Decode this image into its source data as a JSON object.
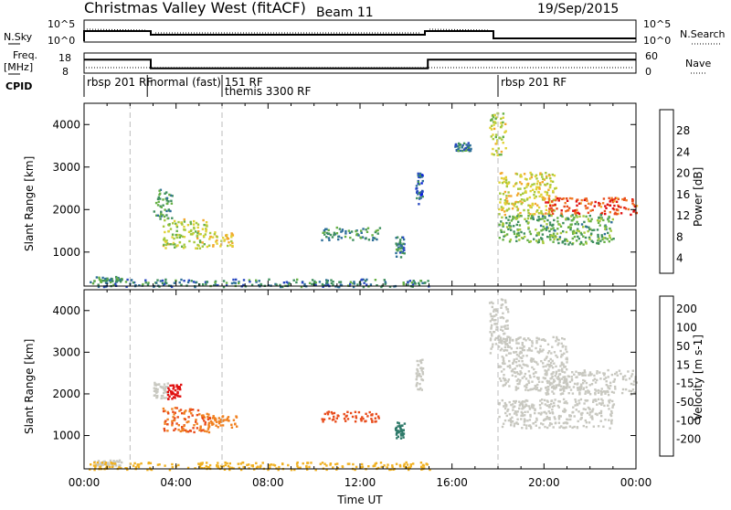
{
  "header": {
    "title": "Christmas Valley West (fitACF)",
    "beam": "Beam 11",
    "date": "19/Sep/2015"
  },
  "params": {
    "nsky_label": "N.Sky",
    "nsky_ticks": [
      "10^5",
      "10^0"
    ],
    "nsearch_label": "N.Search",
    "nsearch_ticks": [
      "10^5",
      "10^0"
    ],
    "freq_label": [
      "Freq.",
      "[MHz]"
    ],
    "freq_ticks": [
      "18",
      "8"
    ],
    "nave_label": "Nave",
    "nave_ticks": [
      "60",
      "0"
    ],
    "cpid_label": "CPID",
    "cpid_segments": [
      {
        "label": "rbsp 201 RF",
        "start_hour": 0
      },
      {
        "label": "normal (fast) 151 RF",
        "start_hour": 2.75
      },
      {
        "label": "themis 3300 RF",
        "start_hour": 6
      },
      {
        "label": "rbsp 201 RF",
        "start_hour": 18
      }
    ],
    "freq_mhz": [
      {
        "from": 0,
        "to": 2.9,
        "value": 14.7
      },
      {
        "from": 2.9,
        "to": 14.95,
        "value": 10.4
      },
      {
        "from": 14.95,
        "to": 24,
        "value": 14.7
      }
    ]
  },
  "chart_data": [
    {
      "type": "heatmap",
      "name": "power",
      "ylabel": "Slant Range [km]",
      "ylim": [
        200,
        4500
      ],
      "yticks": [
        1000,
        2000,
        3000,
        4000
      ],
      "xlim": [
        0,
        24
      ],
      "colorbar": {
        "label": "Power [dB]",
        "ticks": [
          "4",
          "8",
          "12",
          "16",
          "20",
          "24",
          "28"
        ],
        "colors": [
          "#0a1fe0",
          "#2848c0",
          "#2f6f9a",
          "#3f8f5e",
          "#66b046",
          "#a6c93c",
          "#e0d236",
          "#f2a92e",
          "#f07a24",
          "#e84a1c",
          "#e01010"
        ]
      },
      "regions": [
        {
          "t0": 0.4,
          "t1": 1.6,
          "r0": 300,
          "r1": 440,
          "value": 12
        },
        {
          "t0": 3.0,
          "t1": 3.8,
          "r0": 1800,
          "r1": 2500,
          "value": 12
        },
        {
          "t0": 3.4,
          "t1": 5.3,
          "r0": 1100,
          "r1": 1800,
          "value": 18
        },
        {
          "t0": 5.3,
          "t1": 6.5,
          "r0": 1150,
          "r1": 1500,
          "value": 20
        },
        {
          "t0": 10.3,
          "t1": 12.9,
          "r0": 1300,
          "r1": 1600,
          "value": 12
        },
        {
          "t0": 13.5,
          "t1": 13.9,
          "r0": 900,
          "r1": 1400,
          "value": 10
        },
        {
          "t0": 14.4,
          "t1": 14.7,
          "r0": 2100,
          "r1": 2900,
          "value": 8
        },
        {
          "t0": 16.1,
          "t1": 16.8,
          "r0": 3400,
          "r1": 3600,
          "value": 10
        },
        {
          "t0": 17.6,
          "t1": 18.3,
          "r0": 3300,
          "r1": 4300,
          "value": 18
        },
        {
          "t0": 18.0,
          "t1": 20.5,
          "r0": 1900,
          "r1": 2900,
          "value": 20
        },
        {
          "t0": 20.0,
          "t1": 24.0,
          "r0": 1900,
          "r1": 2300,
          "value": 28
        },
        {
          "t0": 18.0,
          "t1": 23.0,
          "r0": 1200,
          "r1": 1900,
          "value": 14
        },
        {
          "t0": 0.2,
          "t1": 15.0,
          "r0": 200,
          "r1": 380,
          "value": 10
        }
      ]
    },
    {
      "type": "heatmap",
      "name": "velocity",
      "ylabel": "Slant Range [km]",
      "xlabel": "Time UT",
      "ylim": [
        200,
        4500
      ],
      "yticks": [
        1000,
        2000,
        3000,
        4000
      ],
      "xlim": [
        0,
        24
      ],
      "xticks": [
        "00:00",
        "04:00",
        "08:00",
        "12:00",
        "16:00",
        "20:00",
        "00:00"
      ],
      "colorbar": {
        "label": "Velocity [m s-1]",
        "ticks": [
          "200",
          "100",
          "50",
          "15",
          "-15",
          "-50",
          "-100",
          "-200"
        ],
        "colors": [
          "#2020b0",
          "#2c4ea8",
          "#2f7a6a",
          "#4aa040",
          "#78c840",
          "#c8c8c0",
          "#f0b020",
          "#f08020",
          "#e84c1c",
          "#e01010"
        ]
      },
      "regions": [
        {
          "t0": 0.4,
          "t1": 1.6,
          "r0": 300,
          "r1": 440,
          "value": 0
        },
        {
          "t0": 3.0,
          "t1": 3.6,
          "r0": 1900,
          "r1": 2300,
          "value": 0
        },
        {
          "t0": 3.6,
          "t1": 4.2,
          "r0": 1900,
          "r1": 2250,
          "value": -200
        },
        {
          "t0": 3.4,
          "t1": 5.5,
          "r0": 1100,
          "r1": 1700,
          "value": -100
        },
        {
          "t0": 5.5,
          "t1": 6.6,
          "r0": 1200,
          "r1": 1500,
          "value": -80
        },
        {
          "t0": 10.3,
          "t1": 12.9,
          "r0": 1350,
          "r1": 1600,
          "value": -120
        },
        {
          "t0": 13.5,
          "t1": 13.9,
          "r0": 950,
          "r1": 1350,
          "value": 60
        },
        {
          "t0": 14.4,
          "t1": 14.7,
          "r0": 2100,
          "r1": 2900,
          "value": 0
        },
        {
          "t0": 17.6,
          "t1": 18.4,
          "r0": 3000,
          "r1": 4300,
          "value": 0
        },
        {
          "t0": 18.0,
          "t1": 21.0,
          "r0": 2100,
          "r1": 3400,
          "value": 0
        },
        {
          "t0": 20.0,
          "t1": 24.0,
          "r0": 2000,
          "r1": 2600,
          "value": 0
        },
        {
          "t0": 18.0,
          "t1": 23.0,
          "r0": 1200,
          "r1": 1900,
          "value": 0
        },
        {
          "t0": 0.2,
          "t1": 15.0,
          "r0": 200,
          "r1": 380,
          "value": -40
        }
      ]
    }
  ]
}
